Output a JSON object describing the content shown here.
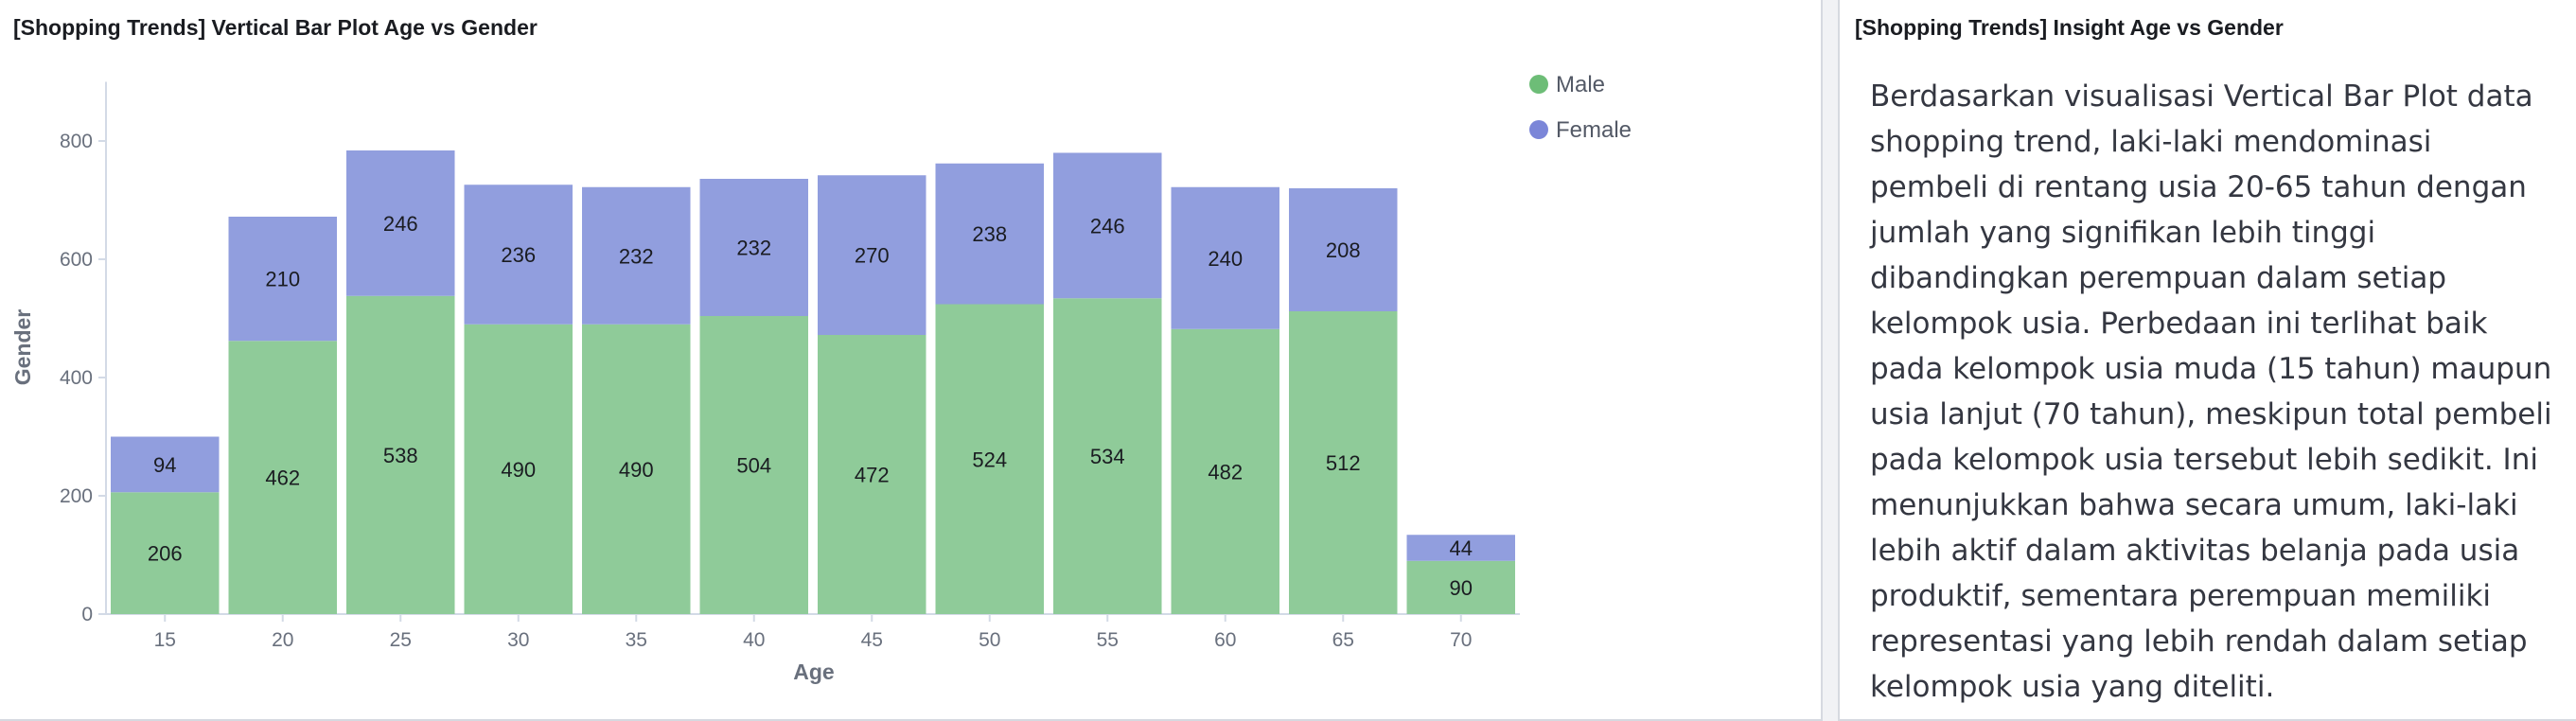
{
  "left_panel": {
    "title": "[Shopping Trends] Vertical Bar Plot Age vs Gender"
  },
  "right_panel": {
    "title": "[Shopping Trends] Insight Age vs Gender",
    "text": "Berdasarkan visualisasi Vertical Bar Plot data shopping trend, laki-laki mendominasi pembeli di rentang usia 20-65 tahun dengan jumlah yang signifikan lebih tinggi dibandingkan perempuan dalam setiap kelompok usia. Perbedaan ini terlihat baik pada kelompok usia muda (15 tahun) maupun usia lanjut (70 tahun), meskipun total pembeli pada kelompok usia tersebut lebih sedikit. Ini menunjukkan bahwa secara umum, laki-laki lebih aktif dalam aktivitas belanja pada usia produktif, sementara perempuan memiliki representasi yang lebih rendah dalam setiap kelompok usia yang diteliti."
  },
  "chart_data": {
    "type": "bar",
    "stacked": true,
    "xlabel": "Age",
    "ylabel": "Gender",
    "categories": [
      "15",
      "20",
      "25",
      "30",
      "35",
      "40",
      "45",
      "50",
      "55",
      "60",
      "65",
      "70"
    ],
    "series": [
      {
        "name": "Male",
        "color": "#8fcb99",
        "legend_color": "#6dbd77",
        "values": [
          206,
          462,
          538,
          490,
          490,
          504,
          472,
          524,
          534,
          482,
          512,
          90
        ]
      },
      {
        "name": "Female",
        "color": "#919ede",
        "legend_color": "#7b86d8",
        "values": [
          94,
          210,
          246,
          236,
          232,
          232,
          270,
          238,
          246,
          240,
          208,
          44
        ]
      }
    ],
    "ylim": [
      0,
      900
    ],
    "yticks": [
      0,
      200,
      400,
      600,
      800
    ],
    "legend_position": "top-right",
    "grid": false
  }
}
